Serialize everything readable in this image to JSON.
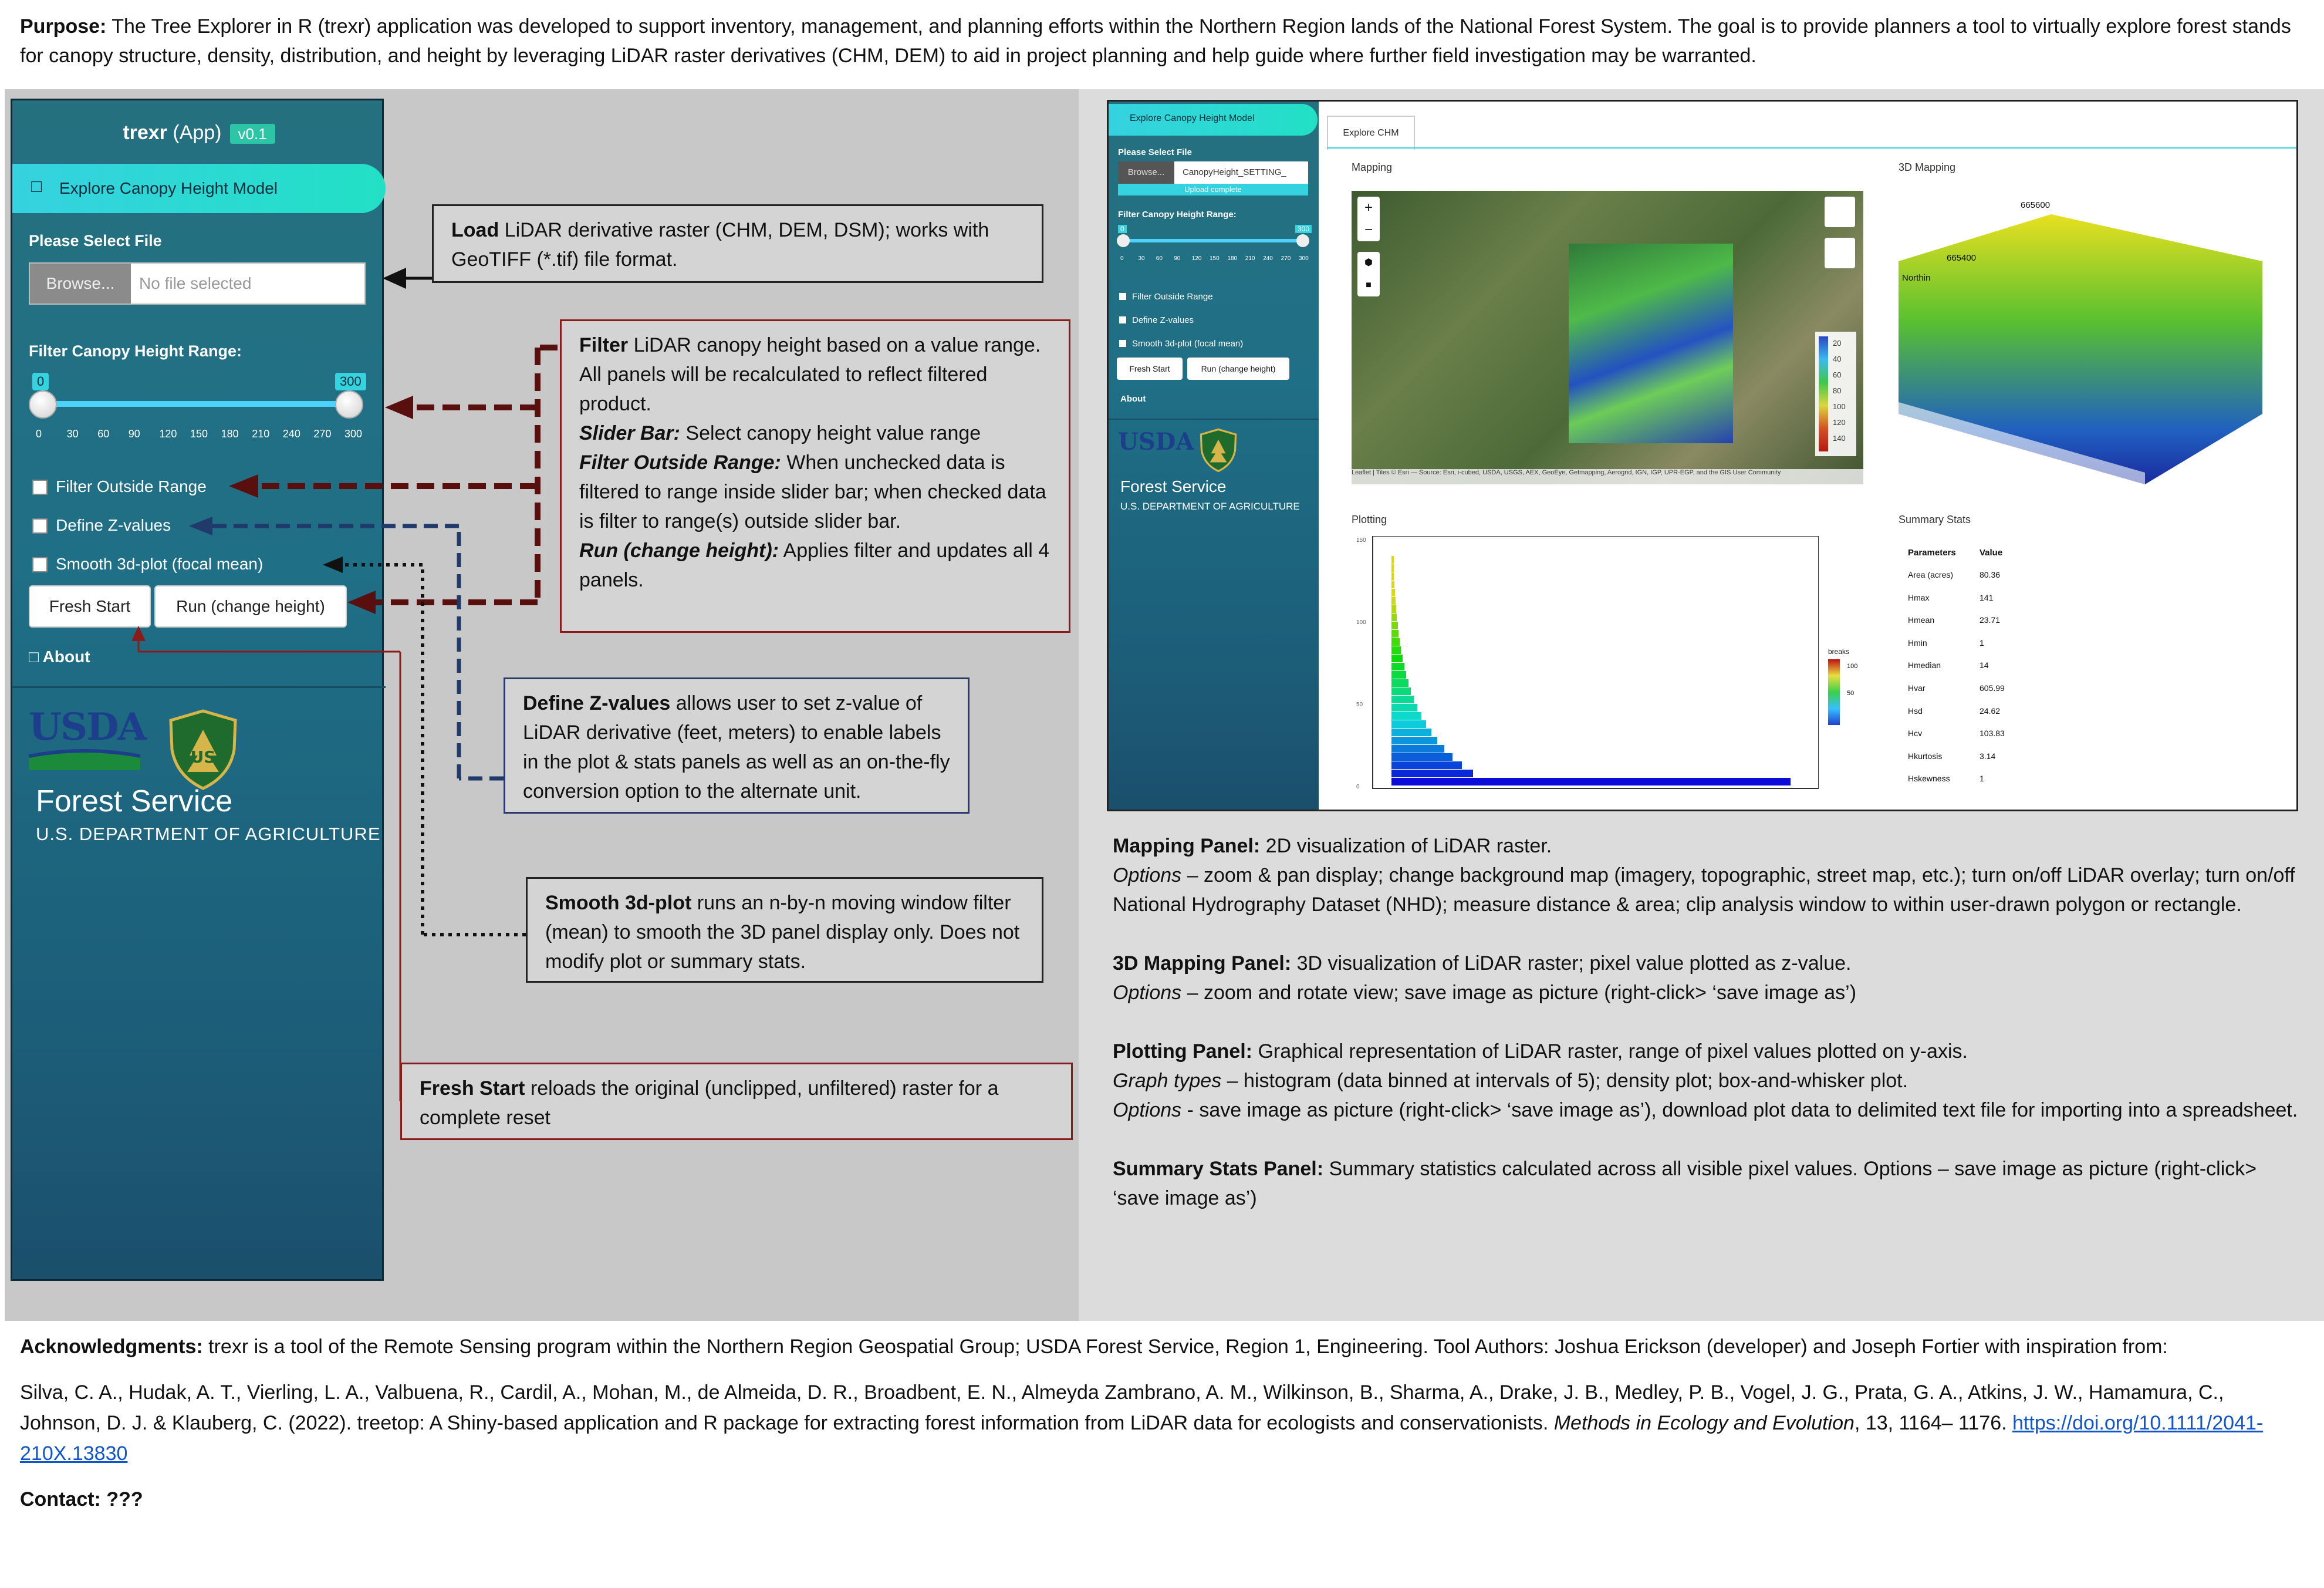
{
  "purpose": {
    "label": "Purpose:",
    "text": " The Tree Explorer in R (trexr) application was developed to support inventory, management, and planning efforts within the Northern Region lands of the National Forest System. The goal is to provide planners a tool to virtually explore forest stands for canopy structure, density, distribution, and height by leveraging LiDAR raster derivatives (CHM, DEM) to aid in project planning and help guide where further field investigation may be warranted."
  },
  "app": {
    "title_bold": "trexr",
    "title_rest": " (App)",
    "version": "v0.1",
    "menu_item": "Explore Canopy Height Model",
    "file_label": "Please Select File",
    "browse": "Browse...",
    "file_placeholder": "No file selected",
    "filter_label": "Filter Canopy Height Range:",
    "slider_min_badge": "0",
    "slider_max_badge": "300",
    "slider_low": 0,
    "slider_high": 300,
    "ticks": [
      "0",
      "30",
      "60",
      "90",
      "120",
      "150",
      "180",
      "210",
      "240",
      "270",
      "300"
    ],
    "chk_filter_outside": "Filter Outside Range",
    "chk_define_z": "Define Z-values",
    "chk_smooth": "Smooth 3d-plot (focal mean)",
    "btn_fresh": "Fresh Start",
    "btn_run": "Run (change height)",
    "about": "About",
    "usda": "USDA",
    "forest_service": "Forest Service",
    "dept": "U.S. DEPARTMENT OF AGRICULTURE"
  },
  "callouts": {
    "load_title": "Load",
    "load_text": " LiDAR derivative raster (CHM, DEM, DSM); works with GeoTIFF (*.tif) file format.",
    "filter_title": "Filter",
    "filter_text": " LiDAR canopy height based on a value range. All panels will be recalculated to reflect filtered product.",
    "slider_title": "Slider Bar:",
    "slider_text": " Select canopy height value range",
    "outside_title": "Filter Outside Range:",
    "outside_text": " When unchecked data is filtered to range inside slider bar; when checked data is filter to range(s) outside slider bar.",
    "run_title": "Run (change height):",
    "run_text": " Applies filter and updates all 4 panels.",
    "z_title": "Define Z-values",
    "z_text": " allows user to set z-value of LiDAR derivative (feet, meters) to enable labels in the plot & stats panels as well as an on-the-fly conversion option to the alternate unit.",
    "smooth_title": "Smooth 3d-plot",
    "smooth_text": " runs an n-by-n moving window filter (mean) to smooth the 3D panel display only. Does not modify plot or summary stats.",
    "fresh_title": "Fresh Start",
    "fresh_text": " reloads the original (unclipped, unfiltered) raster for a complete reset"
  },
  "shot": {
    "menu_item": "Explore Canopy Height Model",
    "file_label": "Please Select File",
    "browse": "Browse...",
    "file_value": "CanopyHeight_SETTING_",
    "upload": "Upload complete",
    "filter_label": "Filter Canopy Height Range:",
    "badge_min": "0",
    "badge_max": "300",
    "ticks": [
      "0",
      "30",
      "60",
      "90",
      "120",
      "150",
      "180",
      "210",
      "240",
      "270",
      "300"
    ],
    "chk1": "Filter Outside Range",
    "chk2": "Define Z-values",
    "chk3": "Smooth 3d-plot (focal mean)",
    "btn_fresh": "Fresh Start",
    "btn_run": "Run (change height)",
    "about": "About",
    "usda": "USDA",
    "forest_service": "Forest Service",
    "dept": "U.S. DEPARTMENT OF AGRICULTURE",
    "tab": "Explore CHM",
    "mapping": "Mapping",
    "mapping3d": "3D Mapping",
    "plotting": "Plotting",
    "summary": "Summary Stats",
    "map_attrib": "Leaflet | Tiles © Esri — Source: Esri, i-cubed, USDA, USGS, AEX, GeoEye, Getmapping, Aerogrid, IGN, IGP, UPR-EGP, and the GIS User Community",
    "legend_vals": [
      "20",
      "40",
      "60",
      "80",
      "100",
      "120",
      "140"
    ],
    "label_665600": "665600",
    "label_665400": "665400",
    "label_north": "Northin",
    "breaks_title": "breaks",
    "breaks_vals": [
      "100",
      "50"
    ],
    "y_ticks": [
      "150",
      "100",
      "50",
      "0"
    ],
    "stats_header": [
      "Parameters",
      "Value"
    ],
    "stats": [
      [
        "Area (acres)",
        "80.36"
      ],
      [
        "Hmax",
        "141"
      ],
      [
        "Hmean",
        "23.71"
      ],
      [
        "Hmin",
        "1"
      ],
      [
        "Hmedian",
        "14"
      ],
      [
        "Hvar",
        "605.99"
      ],
      [
        "Hsd",
        "24.62"
      ],
      [
        "Hcv",
        "103.83"
      ],
      [
        "Hkurtosis",
        "3.14"
      ],
      [
        "Hskewness",
        "1"
      ]
    ]
  },
  "panels_text": {
    "map_title": "Mapping Panel:",
    "map_text": " 2D visualization of LiDAR raster.",
    "map_opt_label": "Options",
    "map_opt_text": " – zoom & pan display; change background map (imagery, topographic, street map, etc.); turn on/off LiDAR overlay; turn on/off National Hydrography Dataset (NHD); measure distance & area; clip analysis window to within user-drawn polygon or rectangle.",
    "m3_title": "3D Mapping Panel:",
    "m3_text": " 3D visualization of LiDAR raster; pixel value plotted as z-value.",
    "m3_opt_label": "Options",
    "m3_opt_text": " – zoom and rotate view; save image as picture (right-click> ‘save image as’)",
    "plot_title": "Plotting Panel:",
    "plot_text": " Graphical representation of LiDAR raster, range of pixel values plotted on y-axis.",
    "plot_gt_label": "Graph types",
    "plot_gt_text": " – histogram (data binned at intervals of 5); density plot; box-and-whisker plot.",
    "plot_opt_label": "Options",
    "plot_opt_text": " - save image as picture (right-click> ‘save image as’), download plot data to delimited text file for importing into a spreadsheet.",
    "stats_title": "Summary Stats Panel:",
    "stats_text": " Summary statistics calculated across all visible pixel values.  Options – save image as picture (right-click> ‘save image as’)"
  },
  "acknowledgments": {
    "label": "Acknowledgments:",
    "text": " trexr is a tool of the Remote Sensing program within the Northern Region Geospatial Group; USDA Forest Service, Region 1, Engineering.  Tool Authors: Joshua Erickson (developer) and Joseph Fortier with inspiration from:",
    "citation": "Silva, C. A., Hudak, A. T., Vierling, L. A., Valbuena, R., Cardil, A., Mohan, M., de Almeida, D. R., Broadbent, E. N., Almeyda Zambrano, A. M., Wilkinson, B., Sharma, A., Drake, J. B., Medley, P. B., Vogel, J. G., Prata, G. A., Atkins, J. W., Hamamura, C., Johnson, D. J. & Klauberg, C. (2022). treetop: A Shiny-based application and R package for extracting forest information from LiDAR data for ecologists and conservationists. ",
    "journal": "Methods in Ecology and Evolution",
    "pages": ", 13, 1164– 1176. ",
    "doi": "https://doi.org/10.1111/2041-210X.13830",
    "contact": "Contact: ???"
  },
  "colors": {
    "sidebar_top": "#25707f",
    "accent": "#35d2e0",
    "arrow_red": "#5a0f0f",
    "arrow_blue": "#1f3a6b",
    "callout_red_border": "#8b1a1a",
    "callout_blue_border": "#2a3a6b"
  }
}
